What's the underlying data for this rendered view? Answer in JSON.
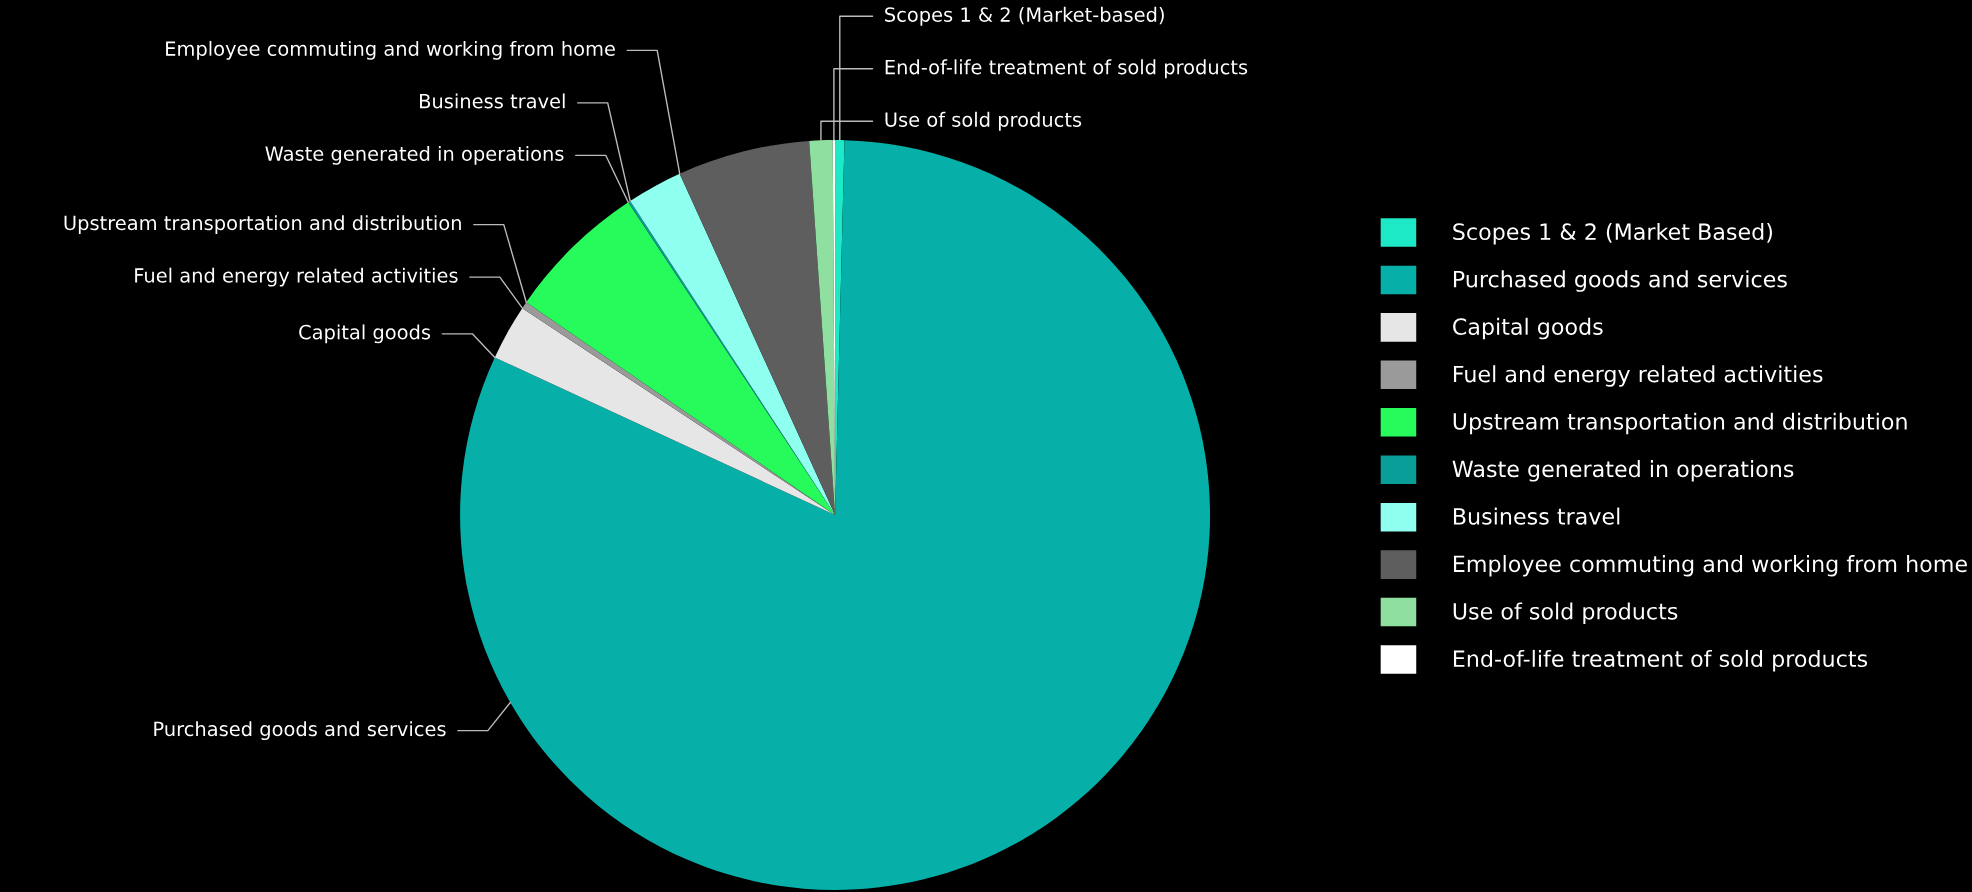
{
  "chart_data": {
    "type": "pie",
    "categories": [
      "Scopes 1 & 2 (Market Based)",
      "Purchased goods and services",
      "Capital goods",
      "Fuel and energy related activities",
      "Upstream transportation and distribution",
      "Waste generated in operations",
      "Business travel",
      "Employee commuting and working from home",
      "Use of sold products",
      "End-of-life treatment of sold products"
    ],
    "values": [
      0.4,
      81.5,
      2.4,
      0.3,
      6.1,
      0.1,
      2.4,
      5.7,
      1.0,
      0.1
    ],
    "colors": [
      "#1de9c6",
      "#06b0a8",
      "#e6e6e6",
      "#9a9a9a",
      "#27fb5b",
      "#0a9e98",
      "#8ffff0",
      "#5e5e5e",
      "#8fe0a0",
      "#ffffff"
    ],
    "annotations": [
      "Scopes 1 & 2 (Market-based)",
      "Purchased goods and services",
      "Capital goods",
      "Fuel and energy related activities",
      "Upstream transportation and distribution",
      "Waste generated in operations",
      "Business travel",
      "Employee commuting and working from home",
      "Use of sold products",
      "End-of-life treatment of sold products"
    ],
    "legend": "right"
  }
}
